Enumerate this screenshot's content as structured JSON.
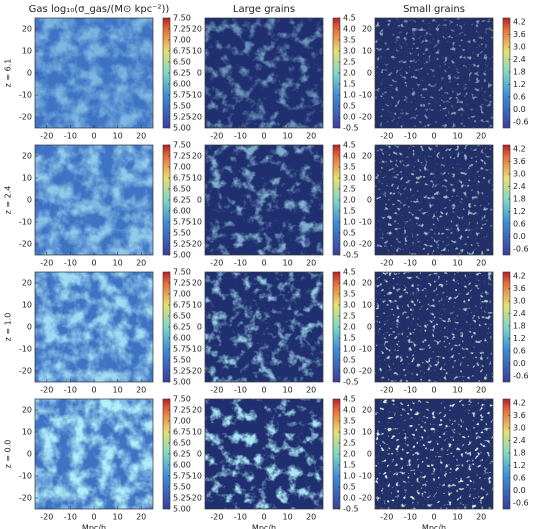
{
  "chart_data": {
    "type": "heatmap-grid",
    "columns": [
      {
        "title": "Gas log₁₀(σ_gas/(M⊙ kpc⁻²))",
        "cbar_lim": [
          5.0,
          7.5
        ],
        "cbar_ticks": [
          {
            "value": 5.0,
            "label": "5.00"
          },
          {
            "value": 5.25,
            "label": "5.25"
          },
          {
            "value": 5.5,
            "label": "5.50"
          },
          {
            "value": 5.75,
            "label": "5.75"
          },
          {
            "value": 6.0,
            "label": "6.00"
          },
          {
            "value": 6.25,
            "label": "6.25"
          },
          {
            "value": 6.5,
            "label": "6.50"
          },
          {
            "value": 6.75,
            "label": "6.75"
          },
          {
            "value": 7.0,
            "label": "7.00"
          },
          {
            "value": 7.25,
            "label": "7.25"
          },
          {
            "value": 7.5,
            "label": "7.50"
          }
        ]
      },
      {
        "title": "Large grains",
        "cbar_lim": [
          -0.5,
          4.5
        ],
        "cbar_ticks": [
          -0.5,
          {
            "value": 0,
            "label": "0.0"
          },
          0.5,
          {
            "value": 1,
            "label": "1.0"
          },
          1.5,
          {
            "value": 2,
            "label": "2.0"
          },
          2.5,
          {
            "value": 3,
            "label": "3.0"
          },
          3.5,
          {
            "value": 4,
            "label": "4.0"
          },
          4.5
        ]
      },
      {
        "title": "Small grains",
        "cbar_lim": [
          -0.9,
          4.4
        ],
        "cbar_ticks": [
          -0.6,
          {
            "value": 0,
            "label": "0.0"
          },
          0.6,
          1.2,
          1.8,
          2.4,
          {
            "value": 3,
            "label": "3.0"
          },
          3.6,
          4.2
        ]
      }
    ],
    "rows": [
      "z = 6.1",
      "z = 2.4",
      "z = 1.0",
      "z = 0.0"
    ],
    "xlim": [
      -25,
      25
    ],
    "xticks": [
      -20,
      -10,
      0,
      10,
      20
    ],
    "ylim": [
      -25,
      25
    ],
    "yticks": [
      -20,
      -10,
      0,
      10,
      20
    ],
    "xlabel": "Mpc/h"
  }
}
